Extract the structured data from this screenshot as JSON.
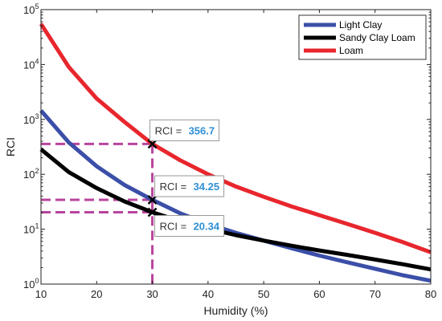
{
  "chart_data": {
    "type": "line",
    "xlabel": "Humidity (%)",
    "ylabel": "RCI",
    "xlim": [
      10,
      80
    ],
    "ylim": [
      1,
      100000
    ],
    "yscale": "log",
    "grid": false,
    "legend_position": "top-right",
    "x_ticks": [
      "10",
      "20",
      "30",
      "40",
      "50",
      "60",
      "70",
      "80"
    ],
    "y_ticks": [
      {
        "value": 1,
        "base": "10",
        "exp": "0"
      },
      {
        "value": 10,
        "base": "10",
        "exp": "1"
      },
      {
        "value": 100,
        "base": "10",
        "exp": "2"
      },
      {
        "value": 1000,
        "base": "10",
        "exp": "3"
      },
      {
        "value": 10000,
        "base": "10",
        "exp": "4"
      },
      {
        "value": 100000,
        "base": "10",
        "exp": "5"
      }
    ],
    "series": [
      {
        "name": "Light Clay",
        "color": "#3b4fa8",
        "x": [
          10,
          15,
          20,
          25,
          30,
          35,
          40,
          45,
          50,
          55,
          60,
          65,
          70,
          75,
          80
        ],
        "y": [
          1450,
          380,
          140,
          64,
          34.25,
          19.5,
          12.5,
          8.6,
          6.2,
          4.5,
          3.3,
          2.5,
          1.9,
          1.45,
          1.15
        ]
      },
      {
        "name": "Sandy Clay Loam",
        "color": "#000000",
        "x": [
          10,
          15,
          20,
          25,
          30,
          35,
          40,
          45,
          50,
          55,
          60,
          65,
          70,
          75,
          80
        ],
        "y": [
          285,
          110,
          56,
          32,
          20.34,
          14,
          10.2,
          7.8,
          6.2,
          5.0,
          4.1,
          3.4,
          2.8,
          2.3,
          1.85
        ]
      },
      {
        "name": "Loam",
        "color": "#e8262d",
        "x": [
          10,
          15,
          20,
          25,
          30,
          35,
          40,
          45,
          50,
          55,
          60,
          65,
          70,
          75,
          80
        ],
        "y": [
          55000,
          9000,
          2400,
          900,
          356.7,
          180,
          100,
          60,
          39,
          26,
          18,
          12.5,
          8.6,
          5.8,
          3.8
        ]
      }
    ],
    "annotations": [
      {
        "x": 30,
        "y": 356.7,
        "label": "RCI =",
        "value": "356.7"
      },
      {
        "x": 30,
        "y": 34.25,
        "label": "RCI =",
        "value": "34.25"
      },
      {
        "x": 30,
        "y": 20.34,
        "label": "RCI =",
        "value": "20.34"
      }
    ],
    "guide_color": "#b8449e",
    "value_color": "#2f8fd4"
  }
}
